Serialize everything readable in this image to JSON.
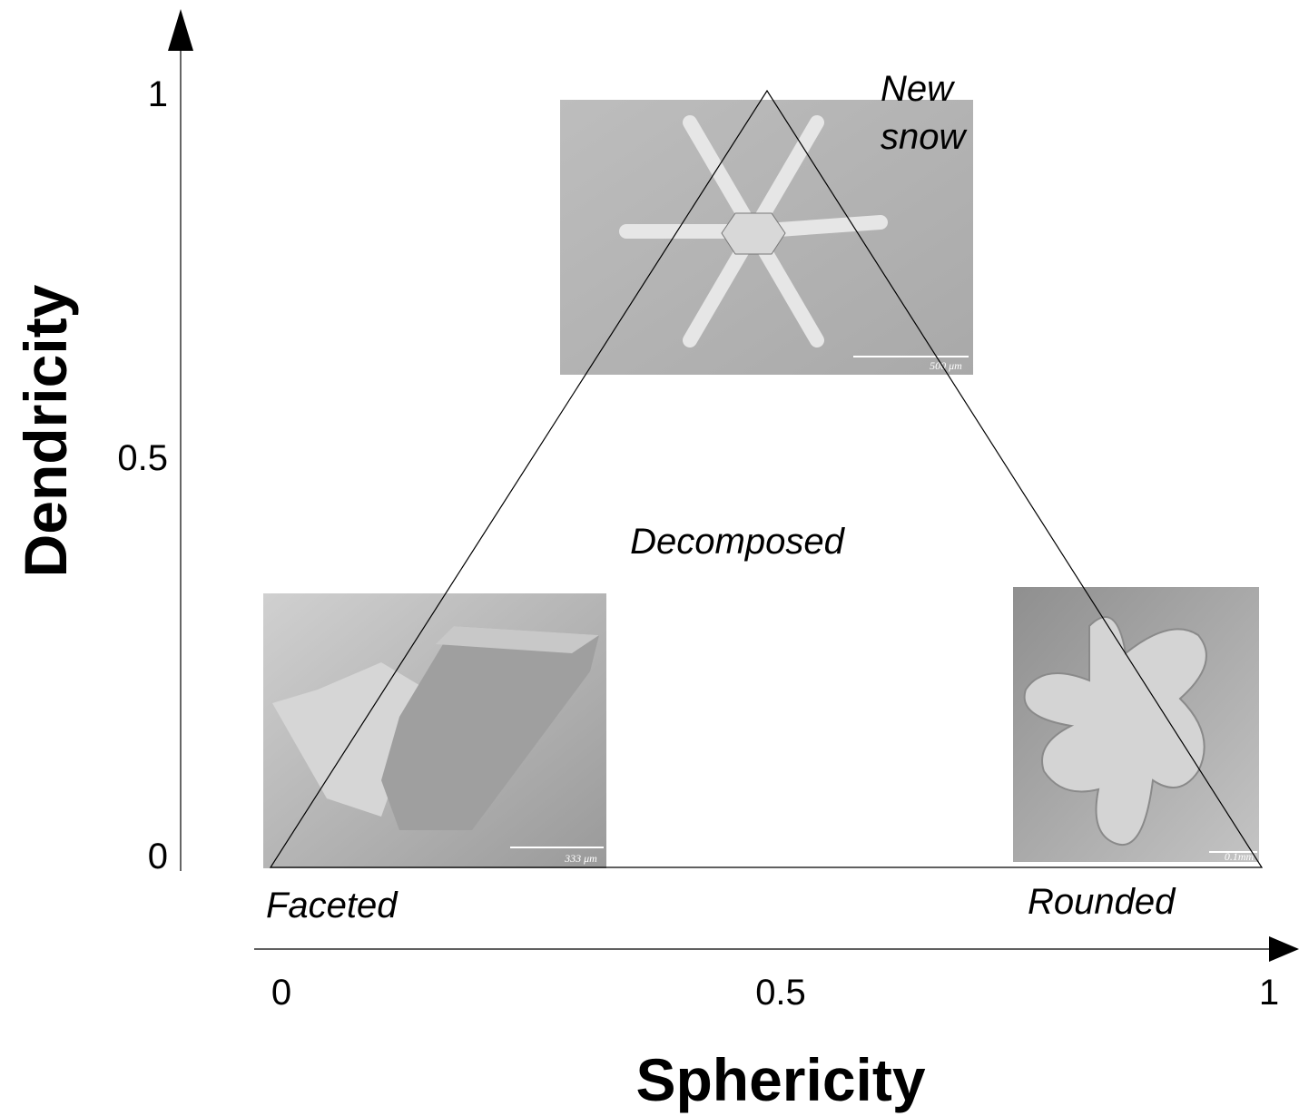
{
  "y_axis": {
    "label": "Dendricity",
    "ticks": [
      "0",
      "0.5",
      "1"
    ]
  },
  "x_axis": {
    "label": "Sphericity",
    "ticks": [
      "0",
      "0.5",
      "1"
    ]
  },
  "corners": {
    "top": [
      "New",
      "snow"
    ],
    "center": "Decomposed",
    "left": "Faceted",
    "right": "Rounded"
  },
  "images": {
    "top_scale": "500 μm",
    "left_scale": "333 μm",
    "right_scale": "0.1mm"
  }
}
